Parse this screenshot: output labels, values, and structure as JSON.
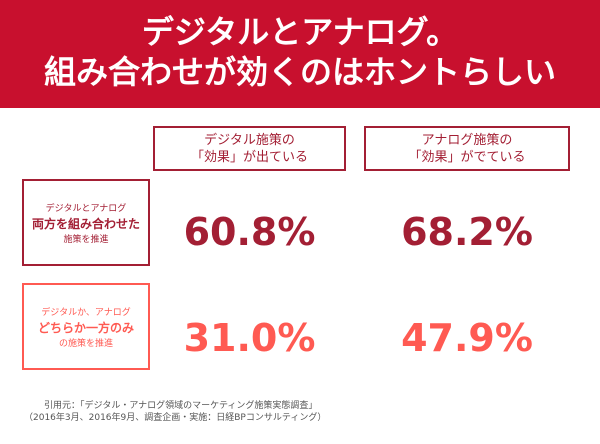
{
  "header": {
    "title_line1": "デジタルとアナログ。",
    "title_line2": "組み合わせが効くのはホントらしい"
  },
  "chart_data": {
    "type": "table",
    "columns": [
      {
        "line1": "デジタル施策の",
        "line2": "「効果」が出ている"
      },
      {
        "line1": "アナログ施策の",
        "line2": "「効果」がでている"
      }
    ],
    "rows": [
      {
        "line1": "デジタルとアナログ",
        "line2": "両方を組み合わせた",
        "line3": "施策を推進",
        "values": [
          "60.8%",
          "68.2%"
        ]
      },
      {
        "line1": "デジタルか、アナログ",
        "line2": "どちらか一方のみ",
        "line3": "の施策を推進",
        "values": [
          "31.0%",
          "47.9%"
        ]
      }
    ]
  },
  "source": {
    "line1": "引用元：「デジタル・アナログ領域のマーケティング施策実態調査」",
    "line2": "（2016年3月、2016年9月、調査企画・実施：日経BPコンサルティング）"
  },
  "colors": {
    "header_bg": "#c8102e",
    "row1_accent": "#a31f34",
    "row2_accent": "#ff5a52"
  }
}
